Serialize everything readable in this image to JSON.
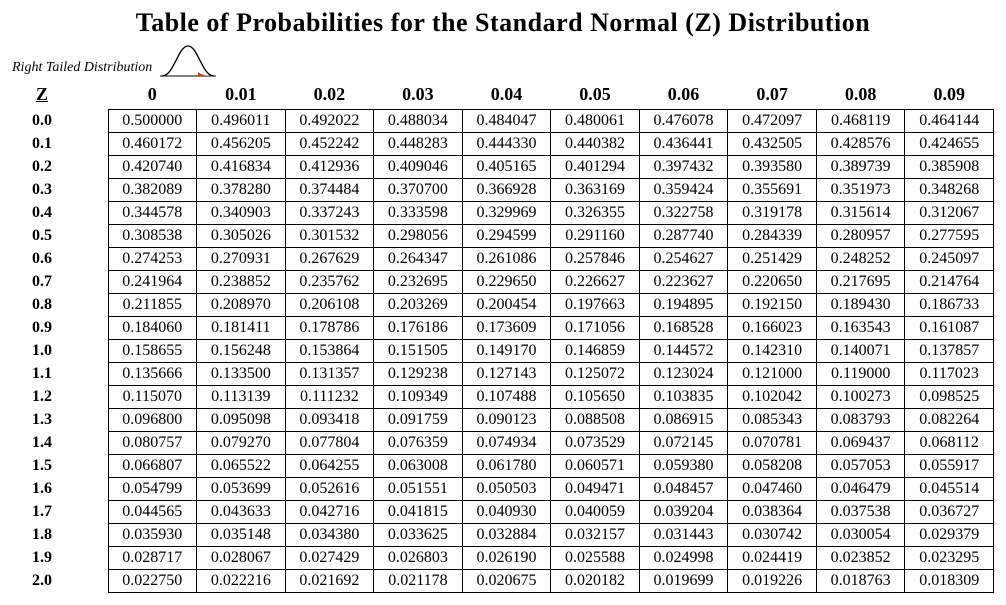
{
  "title": "Table of Probabilities for the Standard Normal (Z) Distribution",
  "subtitle": "Right Tailed Distribution",
  "corner_label": "Z",
  "col_headers": [
    "0",
    "0.01",
    "0.02",
    "0.03",
    "0.04",
    "0.05",
    "0.06",
    "0.07",
    "0.08",
    "0.09"
  ],
  "row_headers": [
    "0.0",
    "0.1",
    "0.2",
    "0.3",
    "0.4",
    "0.5",
    "0.6",
    "0.7",
    "0.8",
    "0.9",
    "1.0",
    "1.1",
    "1.2",
    "1.3",
    "1.4",
    "1.5",
    "1.6",
    "1.7",
    "1.8",
    "1.9",
    "2.0"
  ],
  "rows": [
    [
      "0.500000",
      "0.496011",
      "0.492022",
      "0.488034",
      "0.484047",
      "0.480061",
      "0.476078",
      "0.472097",
      "0.468119",
      "0.464144"
    ],
    [
      "0.460172",
      "0.456205",
      "0.452242",
      "0.448283",
      "0.444330",
      "0.440382",
      "0.436441",
      "0.432505",
      "0.428576",
      "0.424655"
    ],
    [
      "0.420740",
      "0.416834",
      "0.412936",
      "0.409046",
      "0.405165",
      "0.401294",
      "0.397432",
      "0.393580",
      "0.389739",
      "0.385908"
    ],
    [
      "0.382089",
      "0.378280",
      "0.374484",
      "0.370700",
      "0.366928",
      "0.363169",
      "0.359424",
      "0.355691",
      "0.351973",
      "0.348268"
    ],
    [
      "0.344578",
      "0.340903",
      "0.337243",
      "0.333598",
      "0.329969",
      "0.326355",
      "0.322758",
      "0.319178",
      "0.315614",
      "0.312067"
    ],
    [
      "0.308538",
      "0.305026",
      "0.301532",
      "0.298056",
      "0.294599",
      "0.291160",
      "0.287740",
      "0.284339",
      "0.280957",
      "0.277595"
    ],
    [
      "0.274253",
      "0.270931",
      "0.267629",
      "0.264347",
      "0.261086",
      "0.257846",
      "0.254627",
      "0.251429",
      "0.248252",
      "0.245097"
    ],
    [
      "0.241964",
      "0.238852",
      "0.235762",
      "0.232695",
      "0.229650",
      "0.226627",
      "0.223627",
      "0.220650",
      "0.217695",
      "0.214764"
    ],
    [
      "0.211855",
      "0.208970",
      "0.206108",
      "0.203269",
      "0.200454",
      "0.197663",
      "0.194895",
      "0.192150",
      "0.189430",
      "0.186733"
    ],
    [
      "0.184060",
      "0.181411",
      "0.178786",
      "0.176186",
      "0.173609",
      "0.171056",
      "0.168528",
      "0.166023",
      "0.163543",
      "0.161087"
    ],
    [
      "0.158655",
      "0.156248",
      "0.153864",
      "0.151505",
      "0.149170",
      "0.146859",
      "0.144572",
      "0.142310",
      "0.140071",
      "0.137857"
    ],
    [
      "0.135666",
      "0.133500",
      "0.131357",
      "0.129238",
      "0.127143",
      "0.125072",
      "0.123024",
      "0.121000",
      "0.119000",
      "0.117023"
    ],
    [
      "0.115070",
      "0.113139",
      "0.111232",
      "0.109349",
      "0.107488",
      "0.105650",
      "0.103835",
      "0.102042",
      "0.100273",
      "0.098525"
    ],
    [
      "0.096800",
      "0.095098",
      "0.093418",
      "0.091759",
      "0.090123",
      "0.088508",
      "0.086915",
      "0.085343",
      "0.083793",
      "0.082264"
    ],
    [
      "0.080757",
      "0.079270",
      "0.077804",
      "0.076359",
      "0.074934",
      "0.073529",
      "0.072145",
      "0.070781",
      "0.069437",
      "0.068112"
    ],
    [
      "0.066807",
      "0.065522",
      "0.064255",
      "0.063008",
      "0.061780",
      "0.060571",
      "0.059380",
      "0.058208",
      "0.057053",
      "0.055917"
    ],
    [
      "0.054799",
      "0.053699",
      "0.052616",
      "0.051551",
      "0.050503",
      "0.049471",
      "0.048457",
      "0.047460",
      "0.046479",
      "0.045514"
    ],
    [
      "0.044565",
      "0.043633",
      "0.042716",
      "0.041815",
      "0.040930",
      "0.040059",
      "0.039204",
      "0.038364",
      "0.037538",
      "0.036727"
    ],
    [
      "0.035930",
      "0.035148",
      "0.034380",
      "0.033625",
      "0.032884",
      "0.032157",
      "0.031443",
      "0.030742",
      "0.030054",
      "0.029379"
    ],
    [
      "0.028717",
      "0.028067",
      "0.027429",
      "0.026803",
      "0.026190",
      "0.025588",
      "0.024998",
      "0.024419",
      "0.023852",
      "0.023295"
    ],
    [
      "0.022750",
      "0.022216",
      "0.021692",
      "0.021178",
      "0.020675",
      "0.020182",
      "0.019699",
      "0.019226",
      "0.018763",
      "0.018309"
    ]
  ],
  "style": {
    "title_fontsize": 26,
    "header_fontsize": 18,
    "cell_fontsize": 16,
    "subtitle_fontsize": 14,
    "font_family": "Times New Roman",
    "text_color": "#000000",
    "border_color": "#000000",
    "background_color": "#ffffff",
    "curve_stroke": "#000000",
    "curve_tail_fill": "#d04020"
  },
  "structure_type": "table"
}
